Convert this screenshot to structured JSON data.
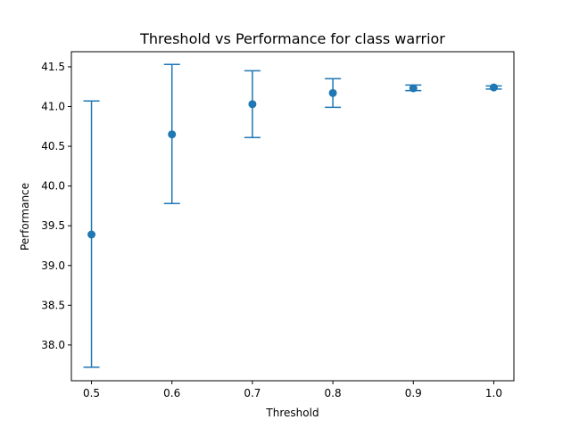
{
  "chart_data": {
    "type": "scatter",
    "title": "Threshold vs Performance for class warrior",
    "xlabel": "Threshold",
    "ylabel": "Performance",
    "x_ticks": [
      "0.5",
      "0.6",
      "0.7",
      "0.8",
      "0.9",
      "1.0"
    ],
    "y_ticks": [
      "38.0",
      "38.5",
      "39.0",
      "39.5",
      "40.0",
      "40.5",
      "41.0",
      "41.5"
    ],
    "xlim": [
      0.475,
      1.025
    ],
    "ylim": [
      37.55,
      41.69
    ],
    "grid": false,
    "legend": "none",
    "color": "#1f77b4",
    "points": [
      {
        "x": 0.5,
        "y": 39.39,
        "yerr_low": 37.72,
        "yerr_high": 41.07
      },
      {
        "x": 0.6,
        "y": 40.65,
        "yerr_low": 39.78,
        "yerr_high": 41.53
      },
      {
        "x": 0.7,
        "y": 41.03,
        "yerr_low": 40.61,
        "yerr_high": 41.45
      },
      {
        "x": 0.8,
        "y": 41.17,
        "yerr_low": 40.99,
        "yerr_high": 41.35
      },
      {
        "x": 0.9,
        "y": 41.23,
        "yerr_low": 41.2,
        "yerr_high": 41.27
      },
      {
        "x": 1.0,
        "y": 41.24,
        "yerr_low": 41.22,
        "yerr_high": 41.26
      }
    ]
  }
}
